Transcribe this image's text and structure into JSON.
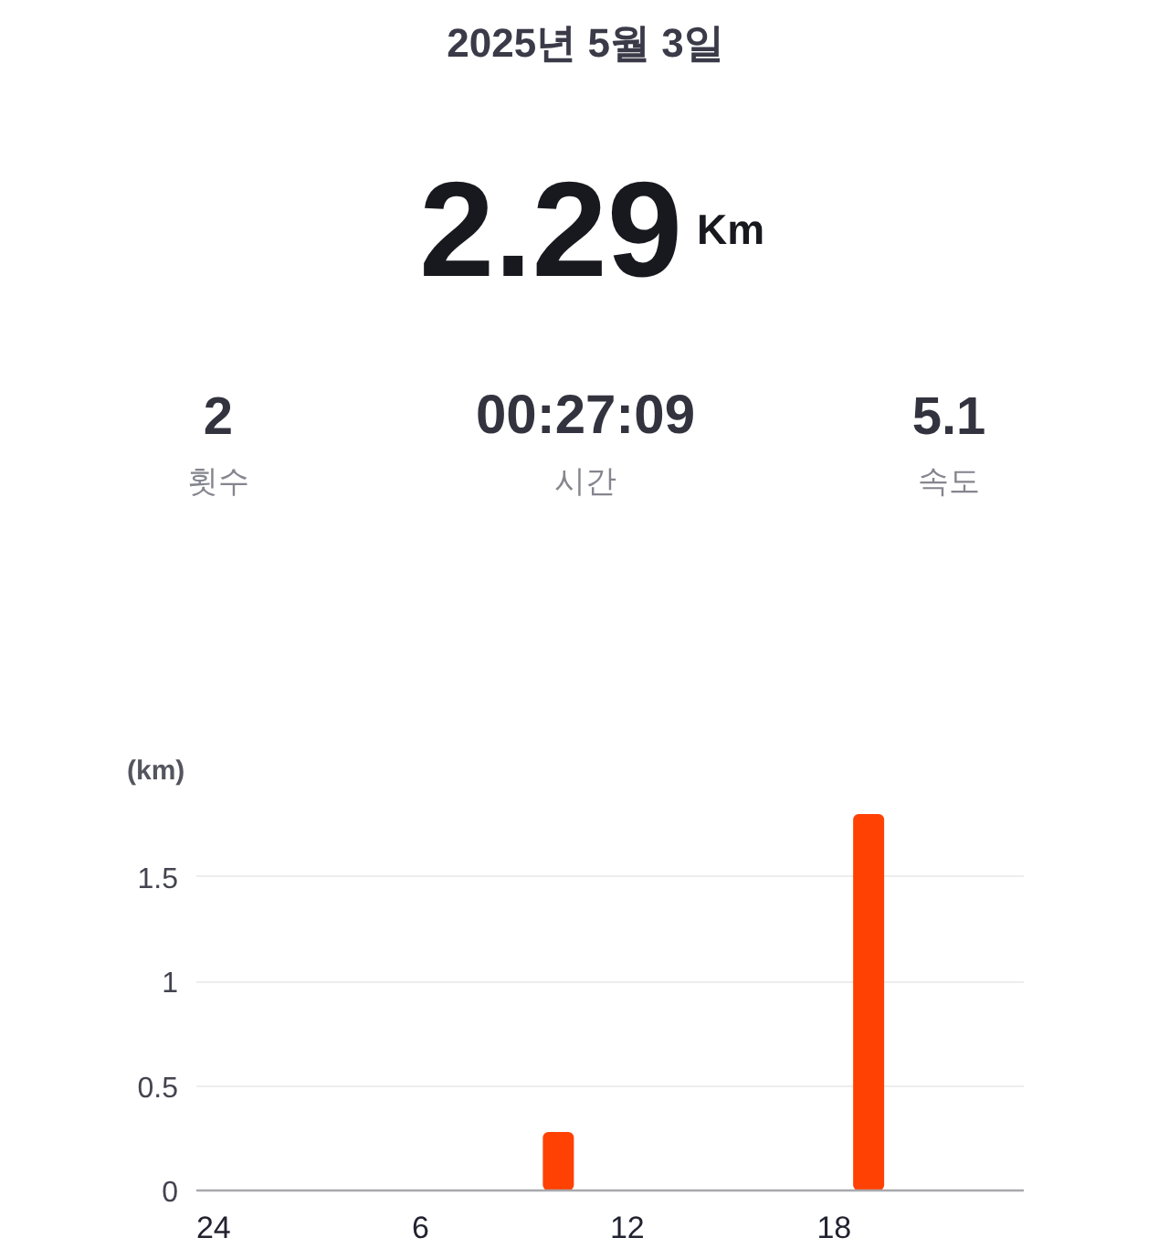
{
  "chart_data": {
    "type": "bar",
    "title": "2025년 5월 3일",
    "ylabel": "(km)",
    "annotations": [
      "2.29",
      "Km",
      "2",
      "횟수",
      "00:27:09",
      "시간",
      "5.1",
      "속도"
    ],
    "categories": [
      "24",
      null,
      null,
      null,
      null,
      null,
      "6",
      null,
      null,
      null,
      null,
      null,
      "12",
      null,
      null,
      null,
      null,
      null,
      "18",
      null,
      null,
      null,
      null,
      null
    ],
    "values": [
      null,
      null,
      null,
      null,
      null,
      null,
      null,
      null,
      null,
      null,
      0.28,
      null,
      null,
      null,
      null,
      null,
      null,
      null,
      null,
      1.8,
      null,
      null,
      null,
      null
    ],
    "color": "#ff4103",
    "ylim": [
      0,
      1.8
    ],
    "yticks": [
      0,
      0.5,
      1,
      1.5
    ],
    "grid": "y"
  }
}
